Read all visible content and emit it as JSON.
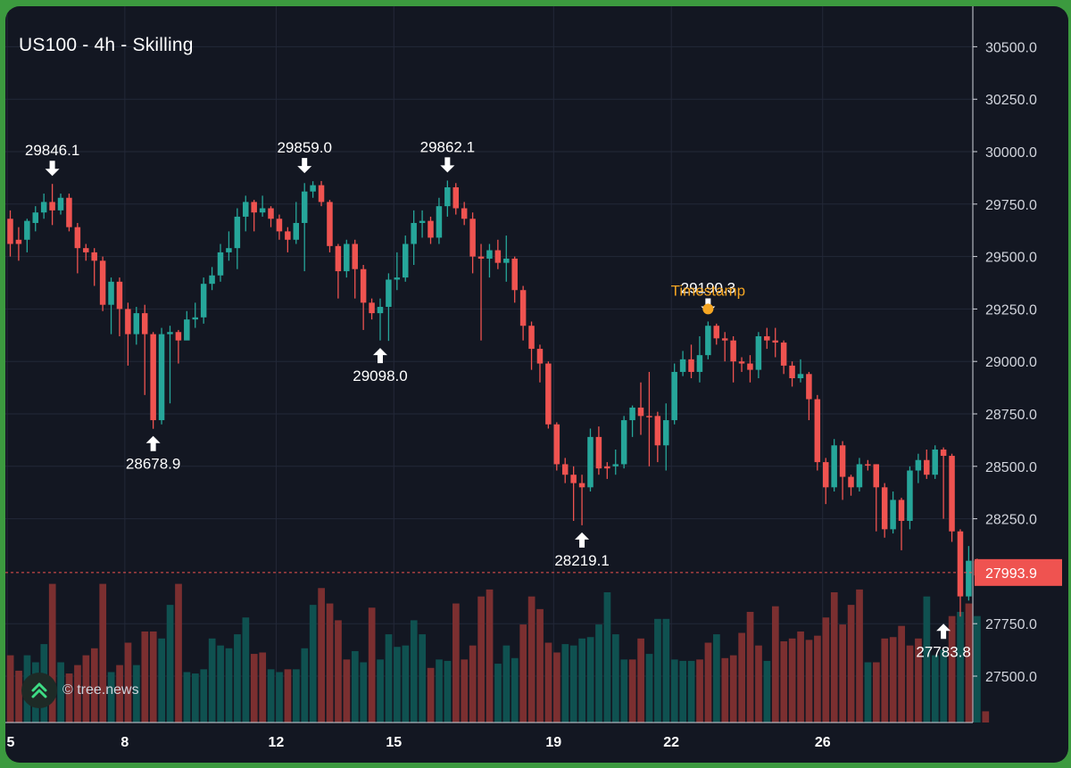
{
  "chart_title": "US100 - 4h - Skilling",
  "credit_text": "© tree.news",
  "chart_data": {
    "type": "candlestick",
    "title": "US100 - 4h - Skilling",
    "ylim": [
      27350,
      30680
    ],
    "y_ticks": [
      "30500.0",
      "30250.0",
      "30000.0",
      "29750.0",
      "29500.0",
      "29250.0",
      "29000.0",
      "28750.0",
      "28500.0",
      "28250.0",
      "27750.0",
      "27500.0"
    ],
    "x_ticks": [
      "5",
      "8",
      "12",
      "15",
      "19",
      "22",
      "26"
    ],
    "current_price": 27993.9,
    "current_price_label": "27993.9",
    "grid": true,
    "colors": {
      "up": "#26a69a",
      "down": "#ef5350",
      "vol_up": "#0f5150",
      "vol_down": "#7b2f30",
      "annotation": "#f5a623",
      "text": "#ffffff"
    },
    "annotations": [
      {
        "label": "29846.1",
        "price": 29846.1,
        "type": "high",
        "bar": 5
      },
      {
        "label": "28678.9",
        "price": 28678.9,
        "type": "low",
        "bar": 17
      },
      {
        "label": "29859.0",
        "price": 29859.0,
        "type": "high",
        "bar": 35
      },
      {
        "label": "29098.0",
        "price": 29098.0,
        "type": "low",
        "bar": 44
      },
      {
        "label": "29862.1",
        "price": 29862.1,
        "type": "high",
        "bar": 52
      },
      {
        "label": "28219.1",
        "price": 28219.1,
        "type": "low",
        "bar": 68
      },
      {
        "label": "29190.3",
        "price": 29190.3,
        "type": "high",
        "bar": 83
      },
      {
        "label": "27783.8",
        "price": 27783.8,
        "type": "low",
        "bar": 111
      }
    ],
    "marker": {
      "label": "Timestamp",
      "bar": 83,
      "price": 29250
    },
    "candles": [
      [
        29680,
        29560,
        29720,
        29500,
        0
      ],
      [
        29560,
        29580,
        29640,
        29480,
        0
      ],
      [
        29580,
        29670,
        29680,
        29520,
        1
      ],
      [
        29660,
        29710,
        29740,
        29620,
        1
      ],
      [
        29710,
        29760,
        29800,
        29680,
        1
      ],
      [
        29760,
        29720,
        29846.1,
        29650,
        0
      ],
      [
        29720,
        29780,
        29800,
        29700,
        1
      ],
      [
        29780,
        29640,
        29800,
        29620,
        0
      ],
      [
        29640,
        29540,
        29660,
        29420,
        0
      ],
      [
        29540,
        29520,
        29560,
        29480,
        0
      ],
      [
        29520,
        29480,
        29540,
        29360,
        0
      ],
      [
        29480,
        29270,
        29500,
        29240,
        0
      ],
      [
        29270,
        29380,
        29400,
        29130,
        1
      ],
      [
        29380,
        29250,
        29400,
        29120,
        0
      ],
      [
        29250,
        29130,
        29280,
        28980,
        0
      ],
      [
        29130,
        29230,
        29260,
        29080,
        1
      ],
      [
        29230,
        29130,
        29270,
        28840,
        0
      ],
      [
        29130,
        28720,
        29140,
        28678.9,
        0
      ],
      [
        28720,
        29130,
        29160,
        28700,
        1
      ],
      [
        29130,
        29140,
        29170,
        28800,
        1
      ],
      [
        29140,
        29100,
        29150,
        28990,
        0
      ],
      [
        29100,
        29200,
        29240,
        29120,
        1
      ],
      [
        29200,
        29210,
        29280,
        29160,
        1
      ],
      [
        29210,
        29370,
        29400,
        29180,
        1
      ],
      [
        29370,
        29410,
        29450,
        29340,
        1
      ],
      [
        29410,
        29520,
        29560,
        29380,
        1
      ],
      [
        29520,
        29540,
        29620,
        29480,
        1
      ],
      [
        29540,
        29690,
        29730,
        29440,
        1
      ],
      [
        29690,
        29760,
        29790,
        29620,
        1
      ],
      [
        29760,
        29710,
        29770,
        29620,
        0
      ],
      [
        29710,
        29730,
        29790,
        29690,
        1
      ],
      [
        29730,
        29680,
        29740,
        29640,
        0
      ],
      [
        29680,
        29620,
        29700,
        29580,
        0
      ],
      [
        29620,
        29580,
        29640,
        29520,
        0
      ],
      [
        29580,
        29660,
        29760,
        29560,
        1
      ],
      [
        29660,
        29810,
        29850,
        29430,
        1
      ],
      [
        29810,
        29840,
        29859.0,
        29780,
        1
      ],
      [
        29840,
        29760,
        29860,
        29740,
        0
      ],
      [
        29760,
        29550,
        29770,
        29520,
        0
      ],
      [
        29550,
        29430,
        29560,
        29300,
        0
      ],
      [
        29430,
        29560,
        29580,
        29400,
        1
      ],
      [
        29560,
        29440,
        29580,
        29300,
        0
      ],
      [
        29440,
        29280,
        29460,
        29150,
        0
      ],
      [
        29280,
        29230,
        29300,
        29200,
        0
      ],
      [
        29230,
        29260,
        29300,
        29100,
        1
      ],
      [
        29260,
        29390,
        29420,
        29098.0,
        1
      ],
      [
        29390,
        29400,
        29520,
        29340,
        1
      ],
      [
        29400,
        29560,
        29600,
        29380,
        1
      ],
      [
        29560,
        29660,
        29720,
        29460,
        1
      ],
      [
        29660,
        29670,
        29720,
        29590,
        1
      ],
      [
        29670,
        29590,
        29690,
        29560,
        0
      ],
      [
        29590,
        29740,
        29780,
        29560,
        1
      ],
      [
        29740,
        29830,
        29862.1,
        29690,
        1
      ],
      [
        29830,
        29730,
        29850,
        29700,
        0
      ],
      [
        29730,
        29680,
        29760,
        29650,
        0
      ],
      [
        29680,
        29500,
        29710,
        29420,
        0
      ],
      [
        29500,
        29490,
        29560,
        29100,
        0
      ],
      [
        29490,
        29530,
        29560,
        29400,
        1
      ],
      [
        29530,
        29470,
        29580,
        29440,
        0
      ],
      [
        29470,
        29490,
        29600,
        29380,
        1
      ],
      [
        29490,
        29340,
        29500,
        29280,
        0
      ],
      [
        29340,
        29170,
        29360,
        29100,
        0
      ],
      [
        29170,
        29060,
        29190,
        28960,
        0
      ],
      [
        29060,
        28990,
        29080,
        28900,
        0
      ],
      [
        28990,
        28700,
        29000,
        28680,
        0
      ],
      [
        28700,
        28510,
        28710,
        28480,
        0
      ],
      [
        28510,
        28460,
        28540,
        28420,
        0
      ],
      [
        28460,
        28420,
        28500,
        28240,
        0
      ],
      [
        28420,
        28400,
        28460,
        28219.1,
        0
      ],
      [
        28400,
        28640,
        28680,
        28380,
        1
      ],
      [
        28640,
        28490,
        28690,
        28460,
        0
      ],
      [
        28490,
        28500,
        28520,
        28440,
        0
      ],
      [
        28500,
        28510,
        28580,
        28460,
        1
      ],
      [
        28510,
        28720,
        28740,
        28490,
        1
      ],
      [
        28720,
        28780,
        28790,
        28640,
        1
      ],
      [
        28780,
        28740,
        28900,
        28650,
        0
      ],
      [
        28740,
        28740,
        28950,
        28500,
        0
      ],
      [
        28740,
        28600,
        28760,
        28520,
        0
      ],
      [
        28600,
        28720,
        28800,
        28480,
        1
      ],
      [
        28720,
        28950,
        28990,
        28700,
        1
      ],
      [
        28950,
        29010,
        29050,
        28930,
        1
      ],
      [
        29010,
        28950,
        29080,
        28920,
        0
      ],
      [
        28950,
        29030,
        29120,
        28900,
        1
      ],
      [
        29030,
        29170,
        29190.3,
        29010,
        1
      ],
      [
        29170,
        29110,
        29180,
        29080,
        0
      ],
      [
        29110,
        29100,
        29140,
        29000,
        0
      ],
      [
        29100,
        29000,
        29120,
        28900,
        0
      ],
      [
        29000,
        28990,
        29020,
        28950,
        0
      ],
      [
        28990,
        28960,
        29030,
        28900,
        0
      ],
      [
        28960,
        29120,
        29140,
        28920,
        1
      ],
      [
        29120,
        29100,
        29160,
        29060,
        0
      ],
      [
        29100,
        29090,
        29160,
        29020,
        0
      ],
      [
        29090,
        28980,
        29100,
        28940,
        0
      ],
      [
        28980,
        28920,
        29000,
        28880,
        0
      ],
      [
        28920,
        28940,
        29010,
        28900,
        1
      ],
      [
        28940,
        28820,
        28950,
        28720,
        0
      ],
      [
        28820,
        28520,
        28840,
        28480,
        0
      ],
      [
        28520,
        28400,
        28540,
        28320,
        0
      ],
      [
        28400,
        28600,
        28630,
        28380,
        1
      ],
      [
        28600,
        28450,
        28620,
        28340,
        0
      ],
      [
        28450,
        28400,
        28460,
        28360,
        0
      ],
      [
        28400,
        28510,
        28540,
        28380,
        1
      ],
      [
        28510,
        28510,
        28530,
        28480,
        0
      ],
      [
        28510,
        28400,
        28510,
        28190,
        0
      ],
      [
        28400,
        28200,
        28420,
        28160,
        0
      ],
      [
        28200,
        28340,
        28380,
        28180,
        1
      ],
      [
        28340,
        28240,
        28350,
        28100,
        0
      ],
      [
        28240,
        28480,
        28500,
        28200,
        1
      ],
      [
        28480,
        28530,
        28560,
        28420,
        1
      ],
      [
        28530,
        28460,
        28580,
        28440,
        0
      ],
      [
        28460,
        28580,
        28600,
        28440,
        1
      ],
      [
        28580,
        28550,
        28590,
        28250,
        0
      ],
      [
        28550,
        28190,
        28560,
        28140,
        0
      ],
      [
        28190,
        27880,
        28200,
        27783.8,
        0
      ],
      [
        27880,
        28050,
        28120,
        27860,
        1
      ],
      [
        28050,
        27980,
        28060,
        27960,
        0
      ]
    ],
    "volume": [
      [
        48,
        0
      ],
      [
        37,
        0
      ],
      [
        48,
        1
      ],
      [
        43,
        1
      ],
      [
        56,
        1
      ],
      [
        99,
        0
      ],
      [
        43,
        1
      ],
      [
        35,
        0
      ],
      [
        41,
        0
      ],
      [
        48,
        0
      ],
      [
        53,
        0
      ],
      [
        99,
        0
      ],
      [
        36,
        1
      ],
      [
        41,
        0
      ],
      [
        57,
        0
      ],
      [
        41,
        1
      ],
      [
        65,
        0
      ],
      [
        65,
        0
      ],
      [
        60,
        1
      ],
      [
        84,
        1
      ],
      [
        99,
        0
      ],
      [
        36,
        1
      ],
      [
        35,
        1
      ],
      [
        38,
        1
      ],
      [
        60,
        1
      ],
      [
        55,
        1
      ],
      [
        53,
        1
      ],
      [
        63,
        1
      ],
      [
        75,
        1
      ],
      [
        49,
        0
      ],
      [
        50,
        0
      ],
      [
        38,
        1
      ],
      [
        36,
        1
      ],
      [
        38,
        0
      ],
      [
        38,
        1
      ],
      [
        53,
        1
      ],
      [
        84,
        1
      ],
      [
        96,
        0
      ],
      [
        85,
        0
      ],
      [
        73,
        0
      ],
      [
        45,
        0
      ],
      [
        51,
        1
      ],
      [
        43,
        1
      ],
      [
        82,
        0
      ],
      [
        45,
        1
      ],
      [
        63,
        1
      ],
      [
        54,
        1
      ],
      [
        55,
        1
      ],
      [
        73,
        1
      ],
      [
        63,
        1
      ],
      [
        39,
        0
      ],
      [
        45,
        1
      ],
      [
        44,
        1
      ],
      [
        85,
        0
      ],
      [
        45,
        0
      ],
      [
        55,
        0
      ],
      [
        90,
        0
      ],
      [
        95,
        0
      ],
      [
        42,
        1
      ],
      [
        55,
        1
      ],
      [
        46,
        1
      ],
      [
        70,
        0
      ],
      [
        90,
        0
      ],
      [
        81,
        0
      ],
      [
        57,
        0
      ],
      [
        50,
        0
      ],
      [
        56,
        1
      ],
      [
        55,
        1
      ],
      [
        60,
        1
      ],
      [
        61,
        1
      ],
      [
        70,
        1
      ],
      [
        93,
        1
      ],
      [
        63,
        1
      ],
      [
        45,
        1
      ],
      [
        45,
        0
      ],
      [
        60,
        0
      ],
      [
        49,
        1
      ],
      [
        74,
        1
      ],
      [
        74,
        1
      ],
      [
        45,
        1
      ],
      [
        44,
        1
      ],
      [
        44,
        1
      ],
      [
        45,
        0
      ],
      [
        57,
        0
      ],
      [
        63,
        1
      ],
      [
        46,
        0
      ],
      [
        48,
        0
      ],
      [
        64,
        0
      ],
      [
        79,
        0
      ],
      [
        55,
        0
      ],
      [
        44,
        1
      ],
      [
        83,
        0
      ],
      [
        58,
        0
      ],
      [
        60,
        0
      ],
      [
        65,
        0
      ],
      [
        59,
        0
      ],
      [
        62,
        0
      ],
      [
        75,
        0
      ],
      [
        93,
        0
      ],
      [
        70,
        0
      ],
      [
        84,
        0
      ],
      [
        95,
        0
      ],
      [
        43,
        1
      ],
      [
        43,
        0
      ],
      [
        60,
        0
      ],
      [
        61,
        0
      ],
      [
        69,
        0
      ],
      [
        55,
        0
      ],
      [
        60,
        0
      ],
      [
        90,
        1
      ],
      [
        48,
        1
      ],
      [
        52,
        1
      ],
      [
        76,
        0
      ],
      [
        79,
        1
      ],
      [
        85,
        0
      ],
      [
        76,
        1
      ],
      [
        8,
        0
      ]
    ]
  }
}
